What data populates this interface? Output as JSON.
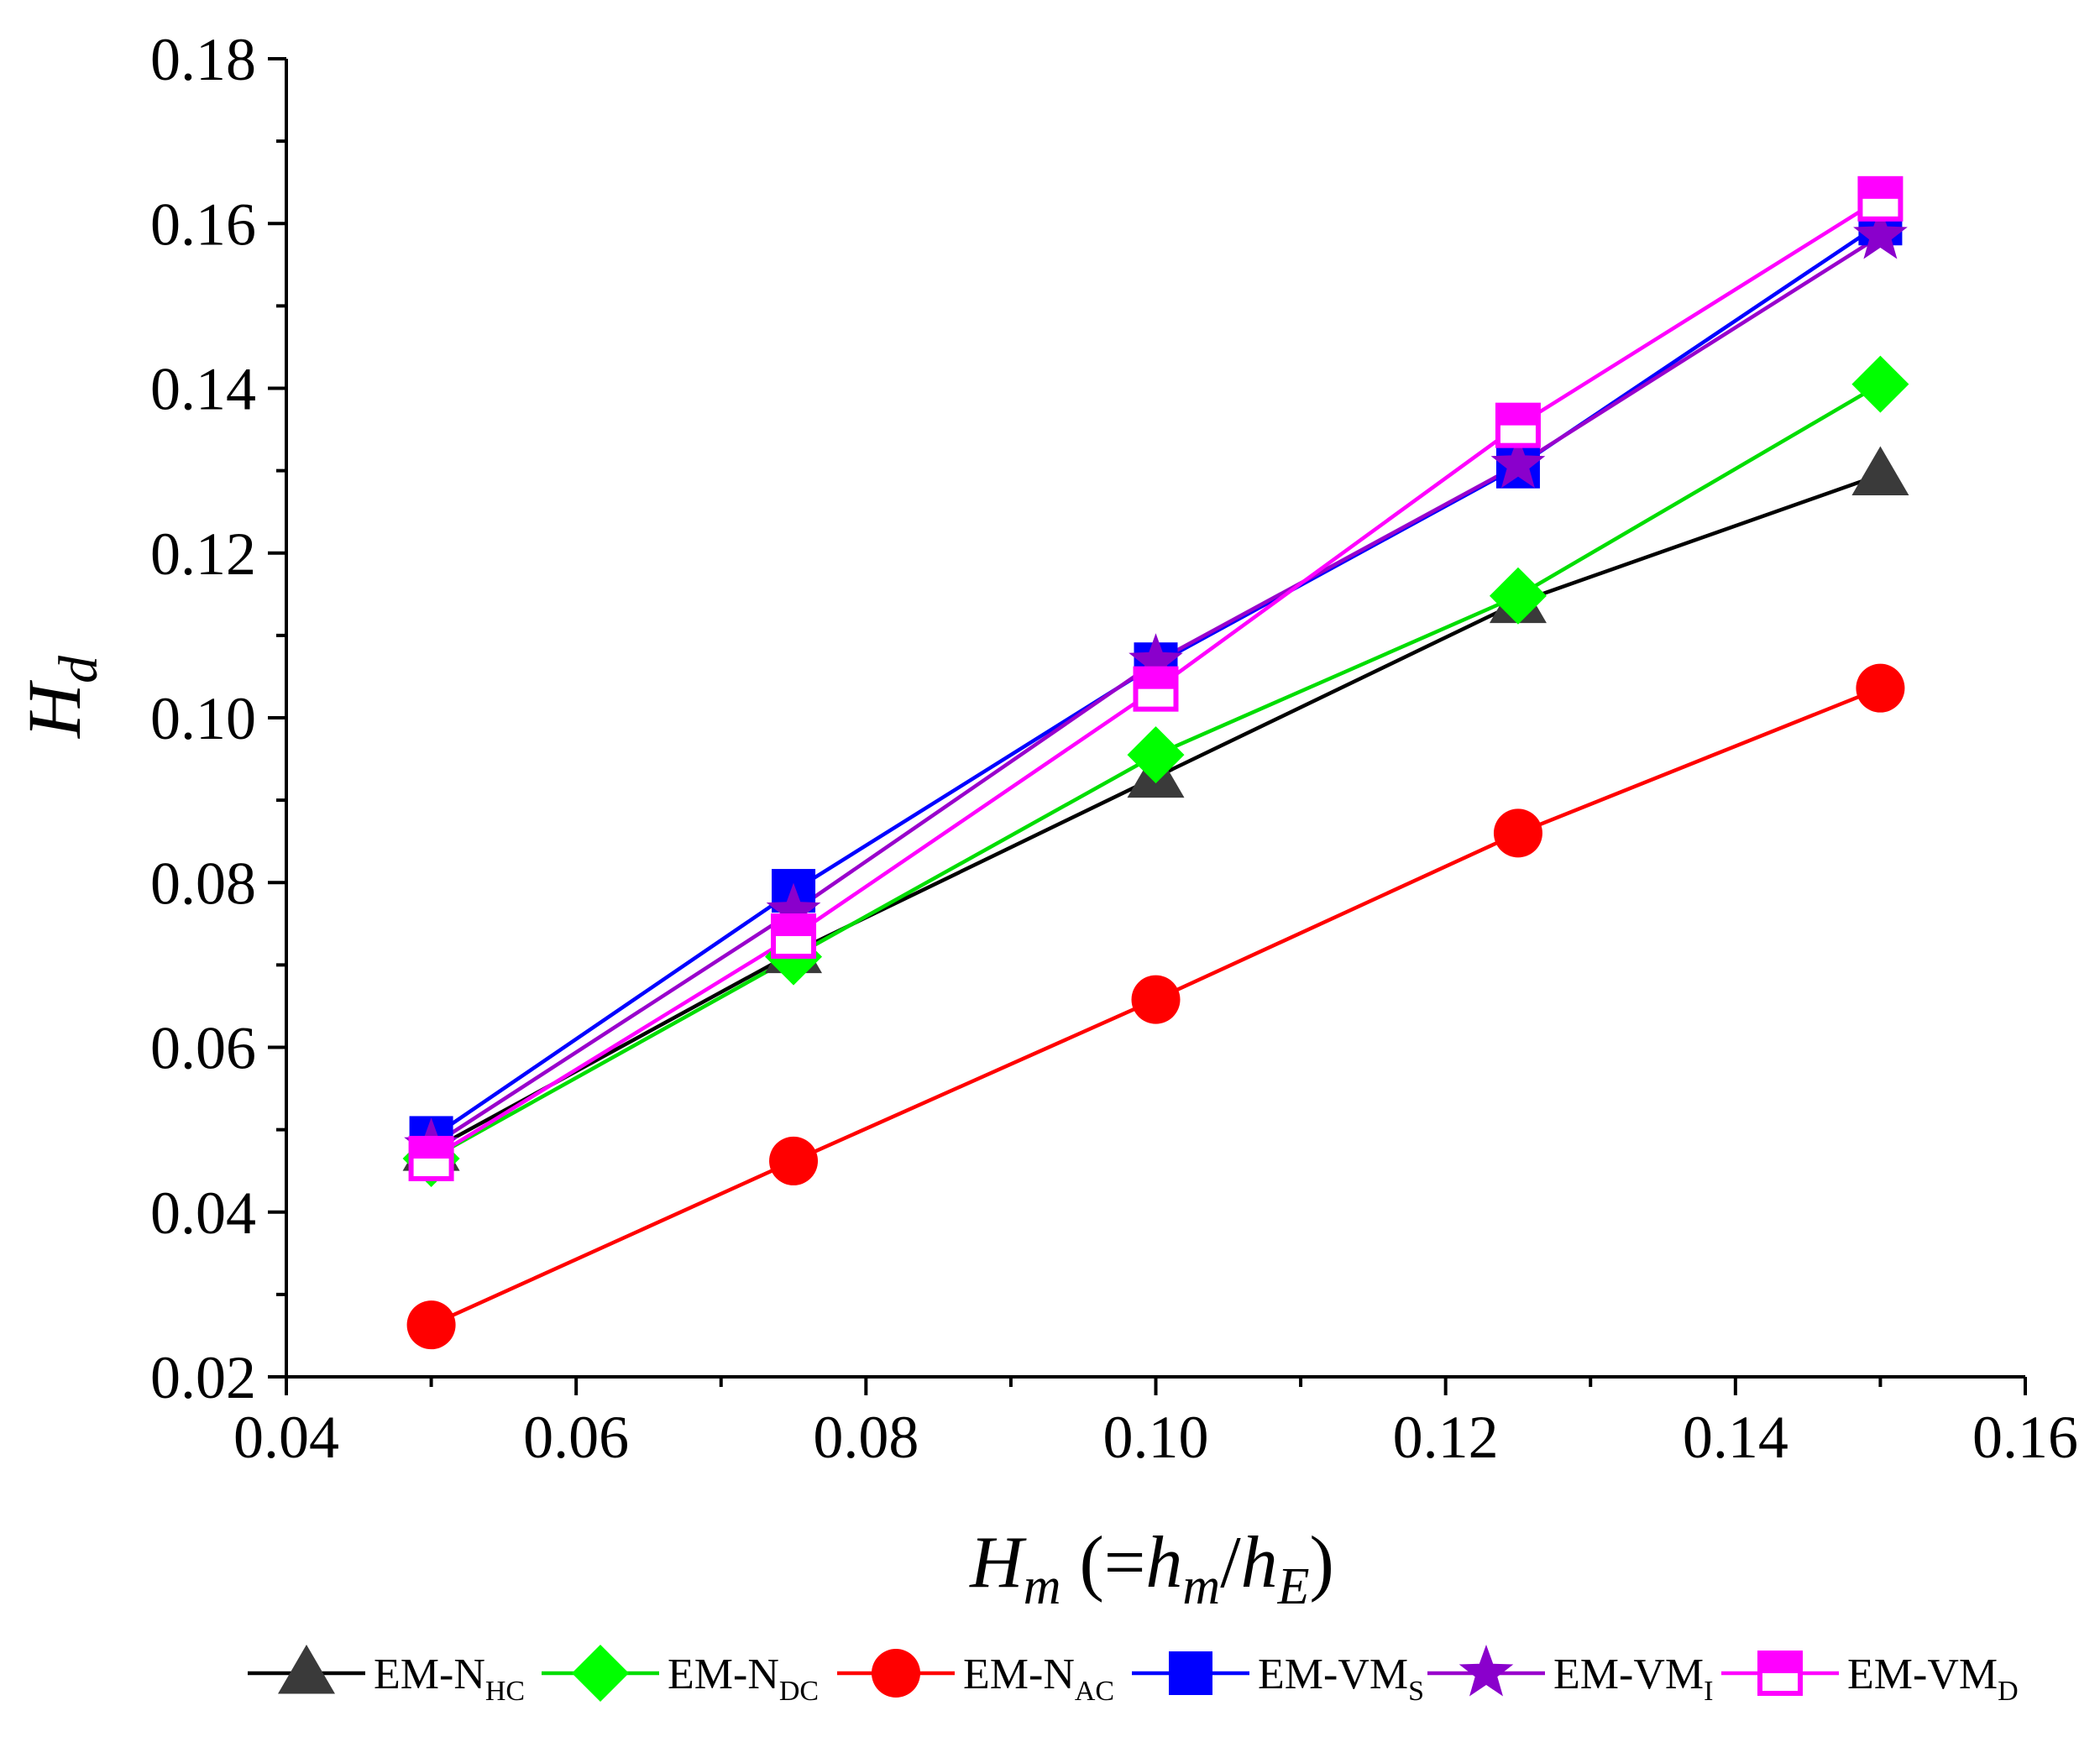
{
  "chart_data": {
    "type": "line",
    "title": "",
    "xlabel": {
      "main": "H",
      "sub": "m",
      "paren_open": " (=",
      "h1": "h",
      "h1_sub": "m",
      "slash": "/",
      "h2": "h",
      "h2_sub": "E",
      "paren_close": ")"
    },
    "ylabel": {
      "main": "H",
      "sub": "d"
    },
    "xlim": [
      0.04,
      0.16
    ],
    "ylim": [
      0.02,
      0.18
    ],
    "xticks": [
      "0.04",
      "0.06",
      "0.08",
      "0.10",
      "0.12",
      "0.14",
      "0.16"
    ],
    "yticks": [
      "0.02",
      "0.04",
      "0.06",
      "0.08",
      "0.10",
      "0.12",
      "0.14",
      "0.16",
      "0.18"
    ],
    "legend_position": "bottom",
    "x": [
      0.05,
      0.075,
      0.1,
      0.125,
      0.15
    ],
    "series": [
      {
        "name": "EM-N",
        "sub": "HC",
        "color": "#000000",
        "marker_color": "#3a3a3a",
        "marker": "triangle",
        "values": [
          0.0475,
          0.0715,
          0.0928,
          0.114,
          0.1295
        ]
      },
      {
        "name": "EM-N",
        "sub": "DC",
        "color": "#00dd00",
        "marker_color": "#00ff00",
        "marker": "diamond",
        "values": [
          0.0465,
          0.071,
          0.0955,
          0.1148,
          0.1405
        ]
      },
      {
        "name": "EM-N",
        "sub": "AC",
        "color": "#ff0000",
        "marker_color": "#ff0000",
        "marker": "circle",
        "values": [
          0.0263,
          0.0462,
          0.0658,
          0.086,
          0.1036
        ]
      },
      {
        "name": "EM-VM",
        "sub": "S",
        "color": "#0000ff",
        "marker_color": "#0000ff",
        "marker": "square",
        "values": [
          0.049,
          0.079,
          0.1065,
          0.1305,
          0.16
        ]
      },
      {
        "name": "EM-VM",
        "sub": "I",
        "color": "#9900cc",
        "marker_color": "#8a00cc",
        "marker": "star",
        "values": [
          0.048,
          0.0765,
          0.1068,
          0.1307,
          0.1585
        ]
      },
      {
        "name": "EM-VM",
        "sub": "D",
        "color": "#ff00ff",
        "marker_color": "#ff00ff",
        "marker": "halfsquare",
        "values": [
          0.0465,
          0.0735,
          0.1035,
          0.1355,
          0.163
        ]
      }
    ]
  }
}
